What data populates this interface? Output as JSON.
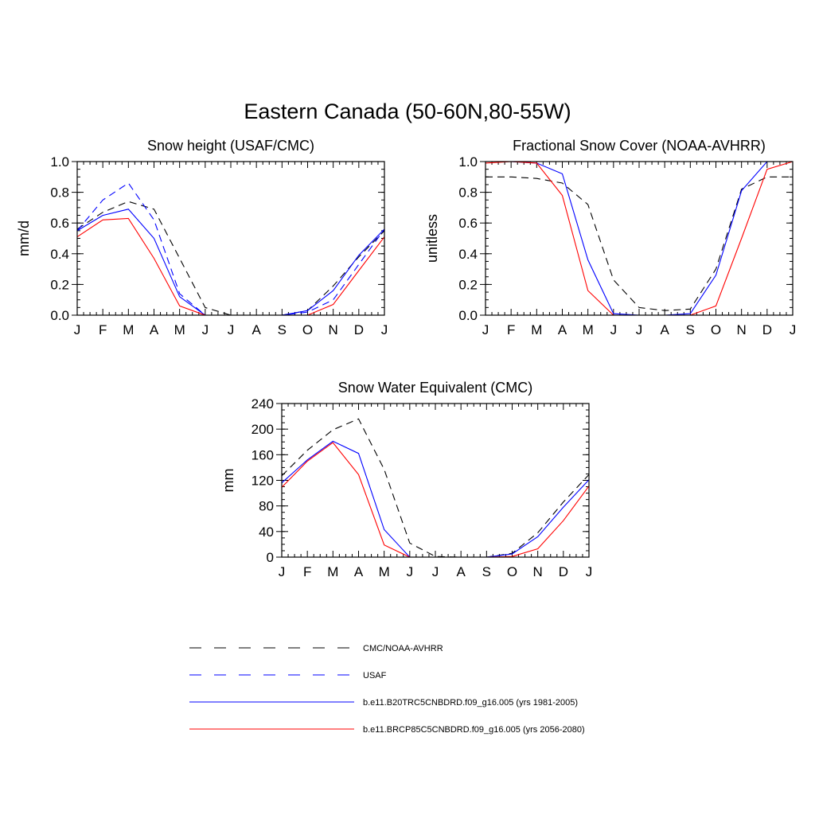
{
  "figure": {
    "title": "Eastern Canada (50-60N,80-55W)"
  },
  "legend": [
    {
      "label": "CMC/NOAA-AVHRR",
      "color": "#000000",
      "dash": true
    },
    {
      "label": "USAF",
      "color": "#0000ff",
      "dash": true
    },
    {
      "label": "b.e11.B20TRC5CNBDRD.f09_g16.005 (yrs 1981-2005)",
      "color": "#0000ff",
      "dash": false
    },
    {
      "label": "b.e11.BRCP85C5CNBDRD.f09_g16.005 (yrs 2056-2080)",
      "color": "#ff0000",
      "dash": false
    }
  ],
  "chart_data": [
    {
      "type": "line",
      "title": "Snow height (USAF/CMC)",
      "ylabel": "mm/d",
      "categories": [
        "J",
        "F",
        "M",
        "A",
        "M",
        "J",
        "J",
        "A",
        "S",
        "O",
        "N",
        "D",
        "J"
      ],
      "ylim": [
        0,
        1
      ],
      "yticks": [
        "0.0",
        "0.2",
        "0.4",
        "0.6",
        "0.8",
        "1.0"
      ],
      "series": [
        {
          "name": "CMC/NOAA-AVHRR",
          "color": "#000000",
          "dash": true,
          "values": [
            0.56,
            0.67,
            0.74,
            0.69,
            0.37,
            0.05,
            0.0,
            0.0,
            0.0,
            0.03,
            0.19,
            0.38,
            0.55
          ]
        },
        {
          "name": "USAF",
          "color": "#0000ff",
          "dash": true,
          "values": [
            0.55,
            0.75,
            0.86,
            0.62,
            0.14,
            0.0,
            0.0,
            0.0,
            0.0,
            0.02,
            0.1,
            0.33,
            0.56
          ]
        },
        {
          "name": "b.e11.B20TRC5CNBDRD.f09_g16.005 (yrs 1981-2005)",
          "color": "#0000ff",
          "dash": false,
          "values": [
            0.55,
            0.65,
            0.69,
            0.5,
            0.12,
            0.0,
            0.0,
            0.0,
            0.0,
            0.03,
            0.16,
            0.39,
            0.56
          ]
        },
        {
          "name": "b.e11.BRCP85C5CNBDRD.f09_g16.005 (yrs 2056-2080)",
          "color": "#ff0000",
          "dash": false,
          "values": [
            0.51,
            0.62,
            0.63,
            0.37,
            0.06,
            0.0,
            0.0,
            0.0,
            0.0,
            0.0,
            0.07,
            0.29,
            0.51
          ]
        }
      ]
    },
    {
      "type": "line",
      "title": "Fractional Snow Cover (NOAA-AVHRR)",
      "ylabel": "unitless",
      "categories": [
        "J",
        "F",
        "M",
        "A",
        "M",
        "J",
        "J",
        "A",
        "S",
        "O",
        "N",
        "D",
        "J"
      ],
      "ylim": [
        0,
        1
      ],
      "yticks": [
        "0.0",
        "0.2",
        "0.4",
        "0.6",
        "0.8",
        "1.0"
      ],
      "series": [
        {
          "name": "CMC/NOAA-AVHRR",
          "color": "#000000",
          "dash": true,
          "values": [
            0.9,
            0.9,
            0.89,
            0.86,
            0.72,
            0.23,
            0.05,
            0.03,
            0.04,
            0.3,
            0.82,
            0.9,
            0.9
          ]
        },
        {
          "name": "b.e11.B20TRC5CNBDRD.f09_g16.005 (yrs 1981-2005)",
          "color": "#0000ff",
          "dash": false,
          "values": [
            1.0,
            1.0,
            0.99,
            0.92,
            0.36,
            0.01,
            0.0,
            0.0,
            0.01,
            0.26,
            0.81,
            1.0,
            1.0
          ]
        },
        {
          "name": "b.e11.BRCP85C5CNBDRD.f09_g16.005 (yrs 2056-2080)",
          "color": "#ff0000",
          "dash": false,
          "values": [
            0.99,
            1.0,
            0.99,
            0.78,
            0.16,
            0.0,
            0.0,
            0.0,
            0.0,
            0.06,
            0.5,
            0.95,
            1.0
          ]
        }
      ]
    },
    {
      "type": "line",
      "title": "Snow Water Equivalent (CMC)",
      "ylabel": "mm",
      "categories": [
        "J",
        "F",
        "M",
        "A",
        "M",
        "J",
        "J",
        "A",
        "S",
        "O",
        "N",
        "D",
        "J"
      ],
      "ylim": [
        0,
        240
      ],
      "yticks": [
        "0",
        "40",
        "80",
        "120",
        "160",
        "200",
        "240"
      ],
      "series": [
        {
          "name": "CMC/NOAA-AVHRR",
          "color": "#000000",
          "dash": true,
          "values": [
            127,
            167,
            199,
            216,
            137,
            22,
            1,
            0,
            0,
            6,
            38,
            86,
            129
          ]
        },
        {
          "name": "b.e11.B20TRC5CNBDRD.f09_g16.005 (yrs 1981-2005)",
          "color": "#0000ff",
          "dash": false,
          "values": [
            116,
            152,
            181,
            162,
            43,
            0,
            0,
            0,
            0,
            5,
            32,
            78,
            121
          ]
        },
        {
          "name": "b.e11.BRCP85C5CNBDRD.f09_g16.005 (yrs 2056-2080)",
          "color": "#ff0000",
          "dash": false,
          "values": [
            109,
            150,
            179,
            129,
            19,
            0,
            0,
            0,
            0,
            1,
            13,
            57,
            111
          ]
        }
      ]
    }
  ]
}
